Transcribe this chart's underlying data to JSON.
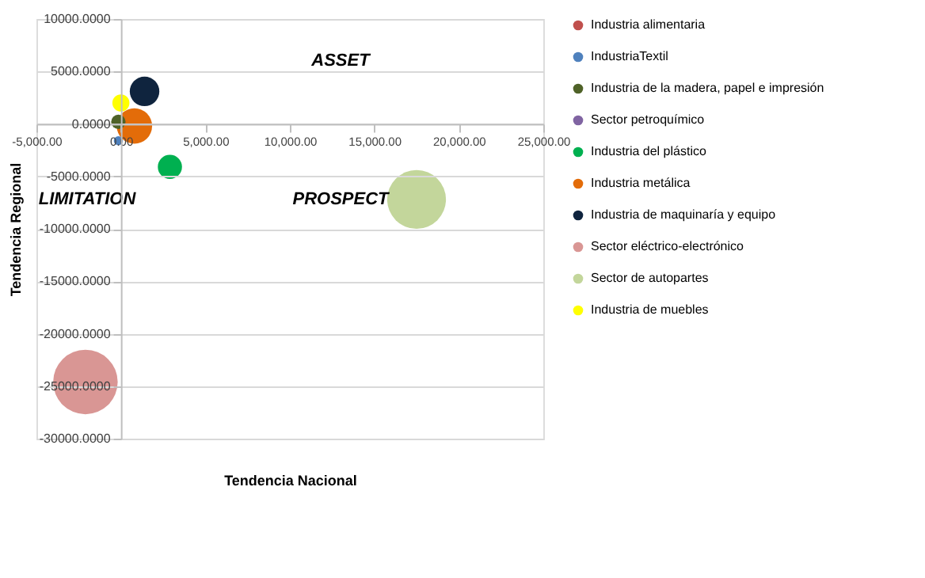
{
  "chart_data": {
    "type": "bubble",
    "xlabel": "Tendencia Nacional",
    "ylabel": "Tendencia Regional",
    "xlim": [
      -5000,
      25000
    ],
    "xticks": [
      {
        "value": -5000,
        "label": "-5,000.00"
      },
      {
        "value": 0,
        "label": "0.00"
      },
      {
        "value": 5000,
        "label": "5,000.00"
      },
      {
        "value": 10000,
        "label": "10,000.00"
      },
      {
        "value": 15000,
        "label": "15,000.00"
      },
      {
        "value": 20000,
        "label": "20,000.00"
      },
      {
        "value": 25000,
        "label": "25,000.00"
      }
    ],
    "ylim": [
      -30000,
      10000
    ],
    "yticks": [
      {
        "value": -30000,
        "label": "-30000.0000"
      },
      {
        "value": -25000,
        "label": "-25000.0000"
      },
      {
        "value": -20000,
        "label": "-20000.0000"
      },
      {
        "value": -15000,
        "label": "-15000.0000"
      },
      {
        "value": -10000,
        "label": "-10000.0000"
      },
      {
        "value": -5000,
        "label": "-5000.0000"
      },
      {
        "value": 0,
        "label": "0.0000"
      },
      {
        "value": 5000,
        "label": "5000.0000"
      },
      {
        "value": 10000,
        "label": "10000.0000"
      }
    ],
    "grid": "y",
    "legend": "right",
    "annotations": [
      "ASSET",
      "LIMITATION",
      "PROSPECT"
    ],
    "series": [
      {
        "name": "Industria alimentaria",
        "color": "#c0504d",
        "x": [
          null
        ],
        "values": [
          null
        ],
        "sizes": [
          null
        ]
      },
      {
        "name": "IndustriaTextil",
        "color": "#4f81bd",
        "x": [
          -150
        ],
        "values": [
          -1600
        ],
        "sizes": [
          0.02
        ]
      },
      {
        "name": "Industria de la madera, papel e impresión",
        "color": "#4f6228",
        "x": [
          -150
        ],
        "values": [
          200
        ],
        "sizes": [
          0.05
        ]
      },
      {
        "name": "Sector petroquímico",
        "color": "#8064a2",
        "x": [
          null
        ],
        "values": [
          null
        ],
        "sizes": [
          null
        ]
      },
      {
        "name": "Industria del plástico",
        "color": "#00b050",
        "x": [
          2900
        ],
        "values": [
          -4100
        ],
        "sizes": [
          0.14
        ]
      },
      {
        "name": "Industria metálica",
        "color": "#e36c09",
        "x": [
          800
        ],
        "values": [
          -200
        ],
        "sizes": [
          0.3
        ]
      },
      {
        "name": "Industria de maquinaría y equipo",
        "color": "#0f243e",
        "x": [
          1400
        ],
        "values": [
          3100
        ],
        "sizes": [
          0.21
        ]
      },
      {
        "name": "Sector eléctrico-electrónico",
        "color": "#d99694",
        "x": [
          -2100
        ],
        "values": [
          -24600
        ],
        "sizes": [
          1
        ]
      },
      {
        "name": "Sector de autopartes",
        "color": "#c3d69b",
        "x": [
          17500
        ],
        "values": [
          -7200
        ],
        "sizes": [
          0.83
        ]
      },
      {
        "name": "Industria de muebles",
        "color": "#ffff00",
        "x": [
          0
        ],
        "values": [
          2000
        ],
        "sizes": [
          0.07
        ]
      }
    ]
  }
}
